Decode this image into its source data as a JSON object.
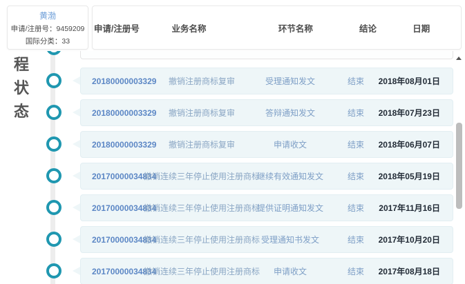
{
  "info_card": {
    "trademark_name": "黄渤",
    "registration_line": "申请/注册号：9459209",
    "class_line": "国际分类：33"
  },
  "vertical_label": {
    "chars": [
      "程",
      "状",
      "态"
    ]
  },
  "table": {
    "headers": [
      "申请/注册号",
      "业务名称",
      "环节名称",
      "结论",
      "日期"
    ],
    "rows": [
      {
        "number": "20180000003329",
        "business": "撤销注册商标复审",
        "step": "受理通知发文",
        "conclusion": "结束",
        "date": "2018年08月01日"
      },
      {
        "number": "20180000003329",
        "business": "撤销注册商标复审",
        "step": "答辩通知发文",
        "conclusion": "结束",
        "date": "2018年07月23日"
      },
      {
        "number": "20180000003329",
        "business": "撤销注册商标复审",
        "step": "申请收文",
        "conclusion": "结束",
        "date": "2018年06月07日"
      },
      {
        "number": "20170000034834",
        "business": "撤销连续三年停止使用注册商标",
        "step": "继续有效通知发文",
        "conclusion": "结束",
        "date": "2018年05月19日"
      },
      {
        "number": "20170000034834",
        "business": "撤销连续三年停止使用注册商标",
        "step": "提供证明通知发文",
        "conclusion": "结束",
        "date": "2017年11月16日"
      },
      {
        "number": "20170000034834",
        "business": "撤销连续三年停止使用注册商标",
        "step": "受理通知书发文",
        "conclusion": "结束",
        "date": "2017年10月20日"
      },
      {
        "number": "20170000034834",
        "business": "撤销连续三年停止使用注册商标",
        "step": "申请收文",
        "conclusion": "结束",
        "date": "2017年08月18日"
      }
    ]
  },
  "colors": {
    "accent_teal": "#1f97b0",
    "link_blue": "#6d9ed8",
    "number_blue": "#5c87c5",
    "muted_blue": "#7e9fc6",
    "date_dark": "#222b36",
    "card_bg": "#eef6f8"
  }
}
